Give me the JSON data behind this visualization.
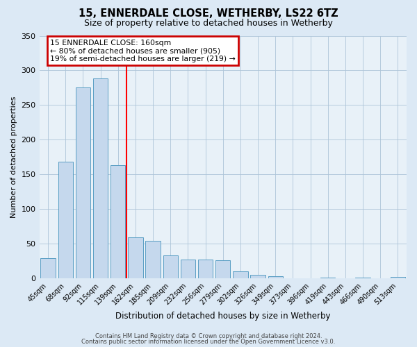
{
  "title": "15, ENNERDALE CLOSE, WETHERBY, LS22 6TZ",
  "subtitle": "Size of property relative to detached houses in Wetherby",
  "xlabel": "Distribution of detached houses by size in Wetherby",
  "ylabel": "Number of detached properties",
  "bar_labels": [
    "45sqm",
    "68sqm",
    "92sqm",
    "115sqm",
    "139sqm",
    "162sqm",
    "185sqm",
    "209sqm",
    "232sqm",
    "256sqm",
    "279sqm",
    "302sqm",
    "326sqm",
    "349sqm",
    "373sqm",
    "396sqm",
    "419sqm",
    "443sqm",
    "466sqm",
    "490sqm",
    "513sqm"
  ],
  "bar_values": [
    29,
    168,
    275,
    288,
    163,
    59,
    54,
    33,
    27,
    27,
    26,
    10,
    5,
    3,
    0,
    0,
    1,
    0,
    1,
    0,
    2
  ],
  "bar_color": "#c5d8ed",
  "bar_edge_color": "#5a9ec4",
  "annotation_title": "15 ENNERDALE CLOSE: 160sqm",
  "annotation_line1": "← 80% of detached houses are smaller (905)",
  "annotation_line2": "19% of semi-detached houses are larger (219) →",
  "annotation_box_color": "#cc0000",
  "ylim": [
    0,
    350
  ],
  "yticks": [
    0,
    50,
    100,
    150,
    200,
    250,
    300,
    350
  ],
  "footer1": "Contains HM Land Registry data © Crown copyright and database right 2024.",
  "footer2": "Contains public sector information licensed under the Open Government Licence v3.0.",
  "bg_color": "#dce9f5",
  "plot_bg_color": "#e8f1f8"
}
